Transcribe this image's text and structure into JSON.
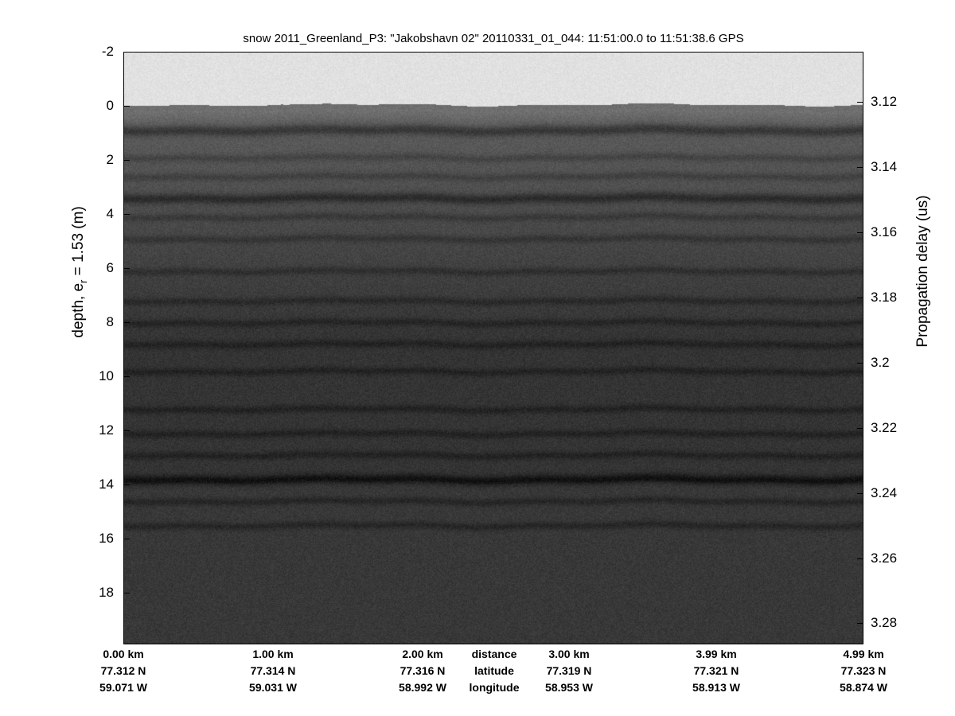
{
  "chart_data": {
    "type": "heatmap",
    "title": "snow 2011_Greenland_P3: \"Jakobshavn 02\"  20110331_01_044: 11:51:00.0 to 11:51:38.6 GPS",
    "ylabel_left": "depth, e",
    "ylabel_left_sub": "r",
    "ylabel_left_rest": " = 1.53 (m)",
    "ylabel_right": "Propagation delay (us)",
    "ylim_left": [
      -2,
      19.9
    ],
    "ylim_right": [
      3.1045,
      3.2865
    ],
    "yticks_left": [
      "-2",
      "0",
      "2",
      "4",
      "6",
      "8",
      "10",
      "12",
      "14",
      "16",
      "18"
    ],
    "yticks_right": [
      "3.12",
      "3.14",
      "3.16",
      "3.18",
      "3.2",
      "3.22",
      "3.24",
      "3.26",
      "3.28"
    ],
    "colormap": "gray",
    "surface_depth_m": 0,
    "layer_depths_m": [
      0.9,
      1.9,
      2.6,
      3.4,
      4.1,
      4.9,
      6.1,
      7.2,
      8.0,
      8.8,
      9.8,
      11.2,
      12.1,
      12.9,
      13.8,
      14.6,
      15.5
    ],
    "bottom_axis": {
      "row_labels": [
        "distance",
        "latitude",
        "longitude"
      ],
      "columns": [
        {
          "distance": "0.00 km",
          "latitude": "77.312 N",
          "longitude": "59.071 W"
        },
        {
          "distance": "1.00 km",
          "latitude": "77.314 N",
          "longitude": "59.031 W"
        },
        {
          "distance": "2.00 km",
          "latitude": "77.316 N",
          "longitude": "58.992 W"
        },
        {
          "distance": "3.00 km",
          "latitude": "77.319 N",
          "longitude": "58.953 W"
        },
        {
          "distance": "3.99 km",
          "latitude": "77.321 N",
          "longitude": "58.913 W"
        },
        {
          "distance": "4.99 km",
          "latitude": "77.323 N",
          "longitude": "58.874 W"
        }
      ]
    }
  }
}
